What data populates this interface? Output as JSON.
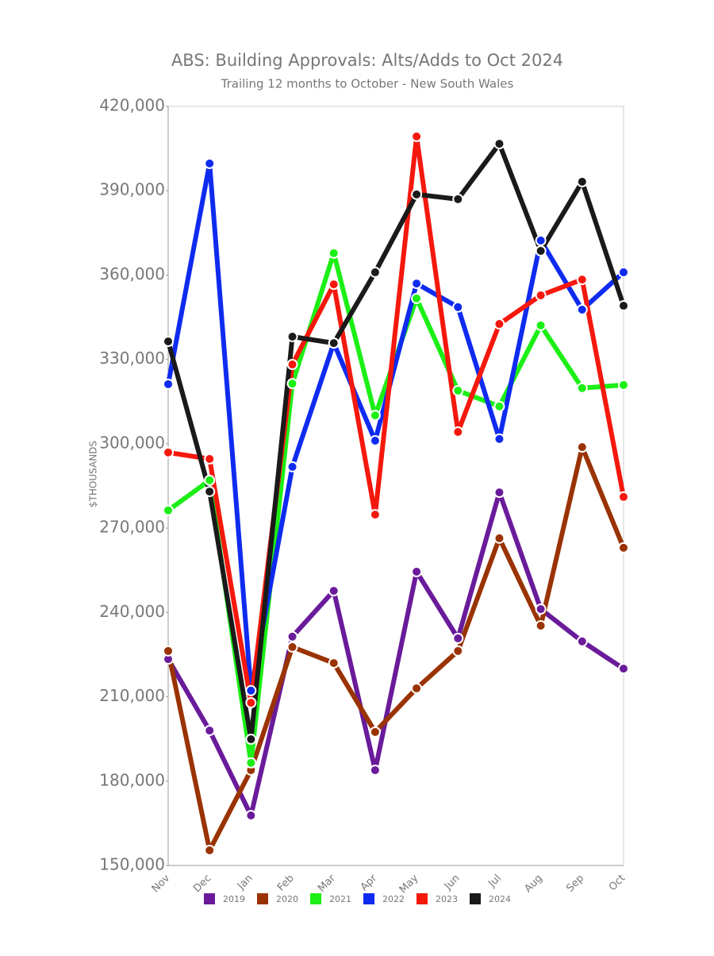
{
  "chart_data": {
    "type": "line",
    "title": "ABS: Building Approvals: Alts/Adds to Oct 2024",
    "subtitle": "Trailing 12 months to October - New South Wales",
    "y_label": "$THOUSANDS",
    "categories": [
      "Nov",
      "Dec",
      "Jan",
      "Feb",
      "Mar",
      "Apr",
      "May",
      "Jun",
      "Jul",
      "Aug",
      "Sep",
      "Oct"
    ],
    "ylim": [
      150000,
      420000
    ],
    "yticks": [
      {
        "value": 150000,
        "label": "150,000"
      },
      {
        "value": 180000,
        "label": "180,000"
      },
      {
        "value": 210000,
        "label": "210,000"
      },
      {
        "value": 240000,
        "label": "240,000"
      },
      {
        "value": 270000,
        "label": "270,000"
      },
      {
        "value": 300000,
        "label": "300,000"
      },
      {
        "value": 330000,
        "label": "330,000"
      },
      {
        "value": 360000,
        "label": "360,000"
      },
      {
        "value": 390000,
        "label": "390,000"
      },
      {
        "value": 420000,
        "label": "420,000"
      }
    ],
    "grid": false,
    "series": [
      {
        "name": "2019",
        "color": "#6a1b9a",
        "values": [
          223400,
          198000,
          167800,
          231400,
          247700,
          183900,
          254500,
          230800,
          282700,
          241200,
          229700,
          220000
        ]
      },
      {
        "name": "2020",
        "color": "#9a3303",
        "values": [
          226300,
          155400,
          183900,
          227700,
          222000,
          197500,
          213000,
          226300,
          266400,
          235300,
          298800,
          263000
        ]
      },
      {
        "name": "2021",
        "color": "#1bef15",
        "values": [
          276300,
          287000,
          186500,
          321400,
          367800,
          310100,
          351700,
          318900,
          313300,
          342100,
          319800,
          320900
        ]
      },
      {
        "name": "2022",
        "color": "#0f2bf0",
        "values": [
          321200,
          399700,
          212200,
          291800,
          335800,
          301100,
          357000,
          348600,
          301700,
          372300,
          347700,
          361000
        ]
      },
      {
        "name": "2023",
        "color": "#f5180d",
        "values": [
          296900,
          294600,
          207900,
          328200,
          356700,
          274800,
          409300,
          304200,
          342600,
          352800,
          358400,
          281100
        ]
      },
      {
        "name": "2024",
        "color": "#1a1a1a",
        "values": [
          336400,
          283000,
          194900,
          338100,
          335800,
          361000,
          388700,
          387000,
          406700,
          368600,
          393200,
          349100
        ]
      }
    ]
  }
}
